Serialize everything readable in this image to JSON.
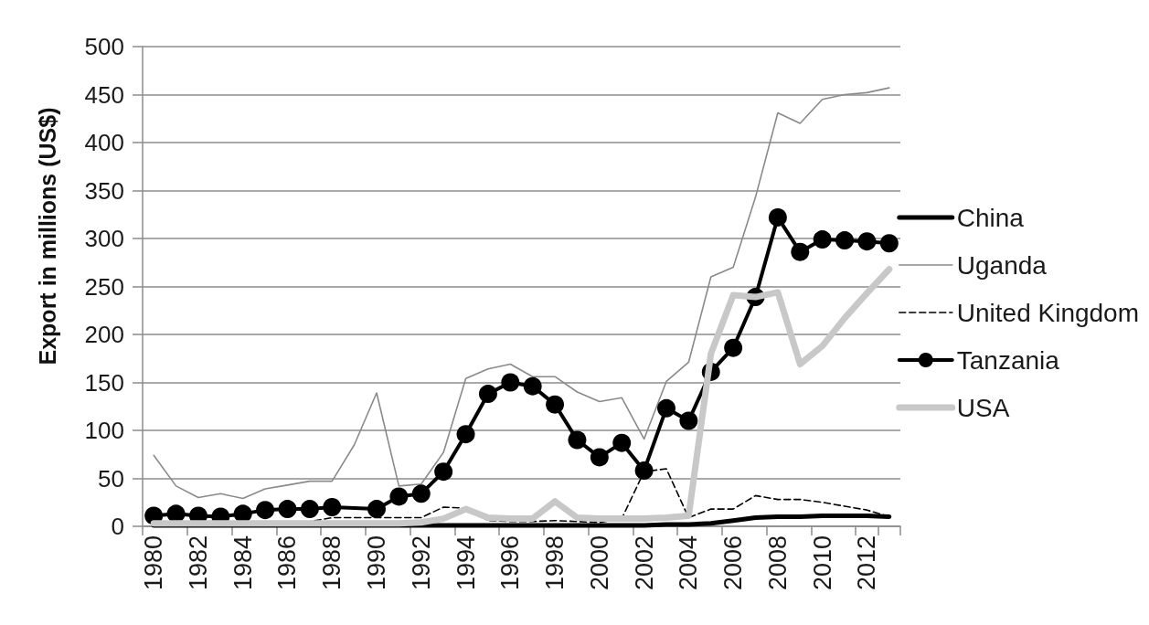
{
  "chart_data": {
    "type": "line",
    "ylabel": "Export in millions (US$)",
    "categories": [
      "1980",
      null,
      "1982",
      null,
      "1984",
      null,
      "1986",
      null,
      "1988",
      null,
      "1990",
      null,
      "1992",
      null,
      "1994",
      null,
      "1996",
      null,
      "1998",
      null,
      "2000",
      null,
      "2002",
      null,
      "2004",
      null,
      "2006",
      null,
      "2008",
      null,
      "2010",
      null,
      "2012",
      null
    ],
    "ylim": [
      0,
      500
    ],
    "yticks": [
      0,
      50,
      100,
      150,
      200,
      250,
      300,
      350,
      400,
      450,
      500
    ],
    "grid": "y",
    "legend": "right",
    "marker": "none",
    "line_style": "solid",
    "series": [
      {
        "name": "China",
        "color": "#000000",
        "values": [
          1,
          1,
          1,
          1,
          1,
          1,
          1,
          1,
          1,
          1,
          1,
          1,
          1,
          1,
          1,
          1,
          1,
          1,
          1,
          1,
          1,
          1,
          1,
          2,
          2,
          3,
          6,
          9,
          10,
          10,
          11,
          11,
          11,
          10
        ]
      },
      {
        "name": "Uganda",
        "color": "#8a8a8a",
        "values": [
          74,
          42,
          30,
          34,
          29,
          39,
          43,
          47,
          47,
          85,
          139,
          42,
          44,
          77,
          154,
          164,
          169,
          156,
          156,
          140,
          130,
          134,
          91,
          151,
          171,
          260,
          270,
          343,
          431,
          420,
          445,
          450,
          452,
          457
        ]
      },
      {
        "name": "United Kingdom",
        "color": "#000000",
        "line_style": "dashed",
        "values": [
          3,
          3,
          3,
          3,
          3,
          4,
          5,
          5,
          9,
          9,
          9,
          9,
          9,
          20,
          19,
          6,
          5,
          5,
          6,
          5,
          4,
          8,
          57,
          60,
          9,
          18,
          18,
          32,
          28,
          28,
          25,
          21,
          17,
          10
        ]
      },
      {
        "name": "Tanzania",
        "color": "#000000",
        "marker": "circle",
        "values": [
          11,
          13,
          11,
          10,
          13,
          17,
          18,
          18,
          20,
          null,
          18,
          31,
          34,
          57,
          96,
          138,
          150,
          146,
          127,
          90,
          72,
          87,
          58,
          123,
          110,
          161,
          186,
          239,
          322,
          286,
          299,
          298,
          297,
          295
        ]
      },
      {
        "name": "USA",
        "color": "#c8c8c8",
        "values": [
          3,
          3,
          3,
          3,
          3,
          3,
          3,
          3,
          3,
          3,
          3,
          3,
          4,
          8,
          18,
          9,
          8,
          8,
          26,
          9,
          8,
          8,
          8,
          9,
          11,
          180,
          241,
          239,
          244,
          169,
          188,
          217,
          243,
          268
        ]
      }
    ]
  }
}
